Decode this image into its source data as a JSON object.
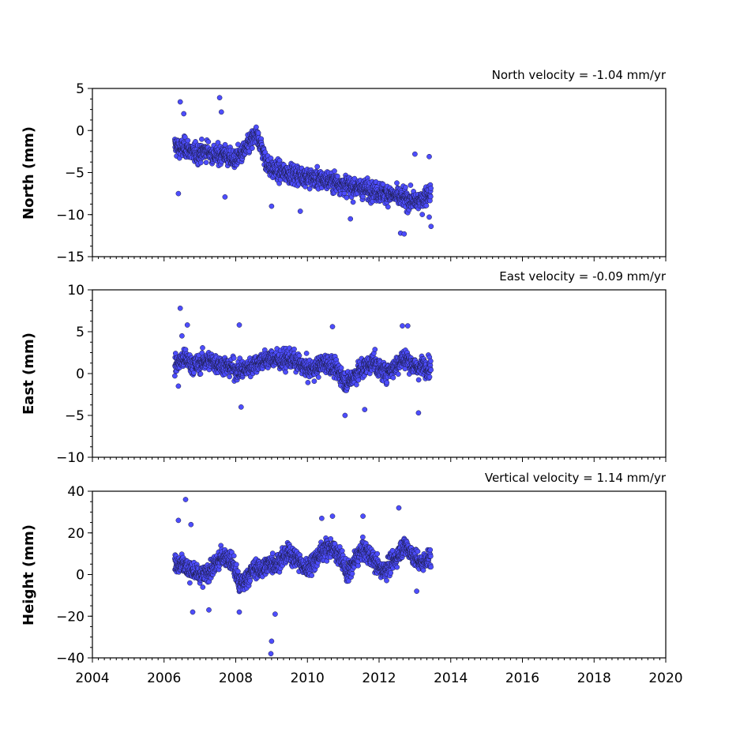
{
  "chart_data": [
    {
      "type": "scatter",
      "ylabel": "North (mm)",
      "annotation": "North velocity = -1.04 mm/yr",
      "xlim": [
        2004,
        2020
      ],
      "ylim": [
        -15,
        5
      ],
      "yticks": [
        5,
        0,
        -5,
        -10,
        -15
      ],
      "ytick_labels": [
        "5",
        "0",
        "−5",
        "−10",
        "−15"
      ],
      "color": "#4d4dff",
      "series": [
        {
          "x": [
            2006.3,
            2006.45,
            2006.6,
            2006.75,
            2006.9,
            2007.05,
            2007.2,
            2007.35,
            2007.5,
            2007.65,
            2007.8,
            2007.95,
            2008.1,
            2008.25,
            2008.4,
            2008.55,
            2008.7,
            2008.85,
            2009.0,
            2009.15,
            2009.3,
            2009.45,
            2009.6,
            2009.75,
            2009.9,
            2010.05,
            2010.2,
            2010.35,
            2010.5,
            2010.65,
            2010.8,
            2010.95,
            2011.1,
            2011.25,
            2011.4,
            2011.55,
            2011.7,
            2011.85,
            2012.0,
            2012.15,
            2012.3,
            2012.45,
            2012.6,
            2012.75,
            2012.9,
            2013.05,
            2013.2,
            2013.35
          ],
          "y": [
            -1.8,
            -2.2,
            -2.0,
            -2.5,
            -2.8,
            -2.6,
            -2.3,
            -2.9,
            -3.0,
            -2.7,
            -3.2,
            -3.5,
            -3.0,
            -2.4,
            -1.5,
            -0.5,
            -1.6,
            -3.8,
            -4.6,
            -4.8,
            -4.9,
            -5.0,
            -5.2,
            -5.3,
            -5.4,
            -5.6,
            -5.7,
            -5.8,
            -5.9,
            -6.0,
            -6.2,
            -6.4,
            -6.6,
            -6.7,
            -6.8,
            -6.9,
            -7.0,
            -7.2,
            -7.3,
            -7.5,
            -7.6,
            -7.8,
            -8.0,
            -8.2,
            -8.3,
            -8.5,
            -8.3,
            -7.5
          ],
          "outliers": [
            [
              2006.45,
              3.4
            ],
            [
              2007.55,
              3.9
            ],
            [
              2006.4,
              -7.5
            ],
            [
              2007.7,
              -7.9
            ],
            [
              2009.0,
              -9.0
            ],
            [
              2012.6,
              -12.2
            ],
            [
              2012.7,
              -12.3
            ],
            [
              2013.0,
              -2.8
            ],
            [
              2013.4,
              -3.1
            ],
            [
              2013.4,
              -10.3
            ],
            [
              2011.2,
              -10.5
            ],
            [
              2009.8,
              -9.6
            ],
            [
              2013.45,
              -11.4
            ],
            [
              2006.55,
              2.0
            ],
            [
              2007.6,
              2.2
            ]
          ]
        }
      ]
    },
    {
      "type": "scatter",
      "ylabel": "East (mm)",
      "annotation": "East velocity = -0.09 mm/yr",
      "xlim": [
        2004,
        2020
      ],
      "ylim": [
        -10,
        10
      ],
      "yticks": [
        10,
        5,
        0,
        -5,
        -10
      ],
      "ytick_labels": [
        "10",
        "5",
        "0",
        "−5",
        "−10"
      ],
      "color": "#4d4dff",
      "series": [
        {
          "x": [
            2006.3,
            2006.45,
            2006.6,
            2006.75,
            2006.9,
            2007.05,
            2007.2,
            2007.35,
            2007.5,
            2007.65,
            2007.8,
            2007.95,
            2008.1,
            2008.25,
            2008.4,
            2008.55,
            2008.7,
            2008.85,
            2009.0,
            2009.15,
            2009.3,
            2009.45,
            2009.6,
            2009.75,
            2009.9,
            2010.05,
            2010.2,
            2010.35,
            2010.5,
            2010.65,
            2010.8,
            2010.95,
            2011.1,
            2011.25,
            2011.4,
            2011.55,
            2011.7,
            2011.85,
            2012.0,
            2012.15,
            2012.3,
            2012.45,
            2012.6,
            2012.75,
            2012.9,
            2013.05,
            2013.2,
            2013.35
          ],
          "y": [
            1.0,
            1.5,
            1.8,
            1.2,
            1.0,
            1.3,
            1.6,
            1.4,
            1.2,
            1.0,
            0.8,
            0.6,
            0.3,
            0.5,
            0.8,
            1.2,
            1.5,
            1.6,
            1.8,
            1.7,
            1.5,
            1.8,
            1.6,
            1.2,
            0.8,
            0.4,
            0.6,
            1.0,
            1.3,
            1.0,
            0.5,
            -0.2,
            -1.2,
            -0.5,
            0.2,
            0.6,
            1.0,
            1.5,
            0.5,
            0.2,
            0.4,
            0.8,
            1.6,
            1.8,
            1.2,
            0.6,
            0.9,
            0.8
          ],
          "outliers": [
            [
              2006.45,
              7.8
            ],
            [
              2006.65,
              5.8
            ],
            [
              2008.1,
              5.8
            ],
            [
              2006.5,
              4.5
            ],
            [
              2008.15,
              -4.0
            ],
            [
              2011.05,
              -5.0
            ],
            [
              2013.1,
              -4.7
            ],
            [
              2012.65,
              5.7
            ],
            [
              2012.8,
              5.7
            ],
            [
              2010.7,
              5.6
            ],
            [
              2011.6,
              -4.3
            ],
            [
              2006.4,
              -1.5
            ]
          ]
        }
      ]
    },
    {
      "type": "scatter",
      "ylabel": "Height (mm)",
      "annotation": "Vertical velocity = 1.14 mm/yr",
      "xlim": [
        2004,
        2020
      ],
      "ylim": [
        -40,
        40
      ],
      "yticks": [
        40,
        20,
        0,
        -20,
        -40
      ],
      "ytick_labels": [
        "40",
        "20",
        "0",
        "−20",
        "−40"
      ],
      "xticks": [
        2004,
        2006,
        2008,
        2010,
        2012,
        2014,
        2016,
        2018,
        2020
      ],
      "xtick_labels": [
        "2004",
        "2006",
        "2008",
        "2010",
        "2012",
        "2014",
        "2016",
        "2018",
        "2020"
      ],
      "color": "#4d4dff",
      "series": [
        {
          "x": [
            2006.3,
            2006.45,
            2006.6,
            2006.75,
            2006.9,
            2007.05,
            2007.2,
            2007.35,
            2007.5,
            2007.65,
            2007.8,
            2007.95,
            2008.1,
            2008.25,
            2008.4,
            2008.55,
            2008.7,
            2008.85,
            2009.0,
            2009.15,
            2009.3,
            2009.45,
            2009.6,
            2009.75,
            2009.9,
            2010.05,
            2010.2,
            2010.35,
            2010.5,
            2010.65,
            2010.8,
            2010.95,
            2011.1,
            2011.25,
            2011.4,
            2011.55,
            2011.7,
            2011.85,
            2012.0,
            2012.15,
            2012.3,
            2012.45,
            2012.6,
            2012.75,
            2012.9,
            2013.05,
            2013.2,
            2013.35
          ],
          "y": [
            5,
            6,
            4,
            2,
            0,
            -1,
            1,
            3,
            6,
            9,
            8,
            4,
            -5,
            -3,
            1,
            3,
            2,
            4,
            6,
            5,
            8,
            10,
            9,
            7,
            3,
            4,
            7,
            10,
            12,
            13,
            11,
            8,
            0,
            4,
            9,
            12,
            10,
            7,
            3,
            2,
            5,
            7,
            12,
            14,
            10,
            7,
            5,
            8
          ],
          "outliers": [
            [
              2006.6,
              36
            ],
            [
              2006.4,
              26
            ],
            [
              2006.75,
              24
            ],
            [
              2009.0,
              -32
            ],
            [
              2008.98,
              -38
            ],
            [
              2012.55,
              32
            ],
            [
              2011.55,
              28
            ],
            [
              2006.8,
              -18
            ],
            [
              2007.25,
              -17
            ],
            [
              2008.1,
              -18
            ],
            [
              2009.1,
              -19
            ],
            [
              2010.4,
              27
            ],
            [
              2010.7,
              28
            ],
            [
              2013.05,
              -8
            ]
          ]
        }
      ]
    }
  ]
}
